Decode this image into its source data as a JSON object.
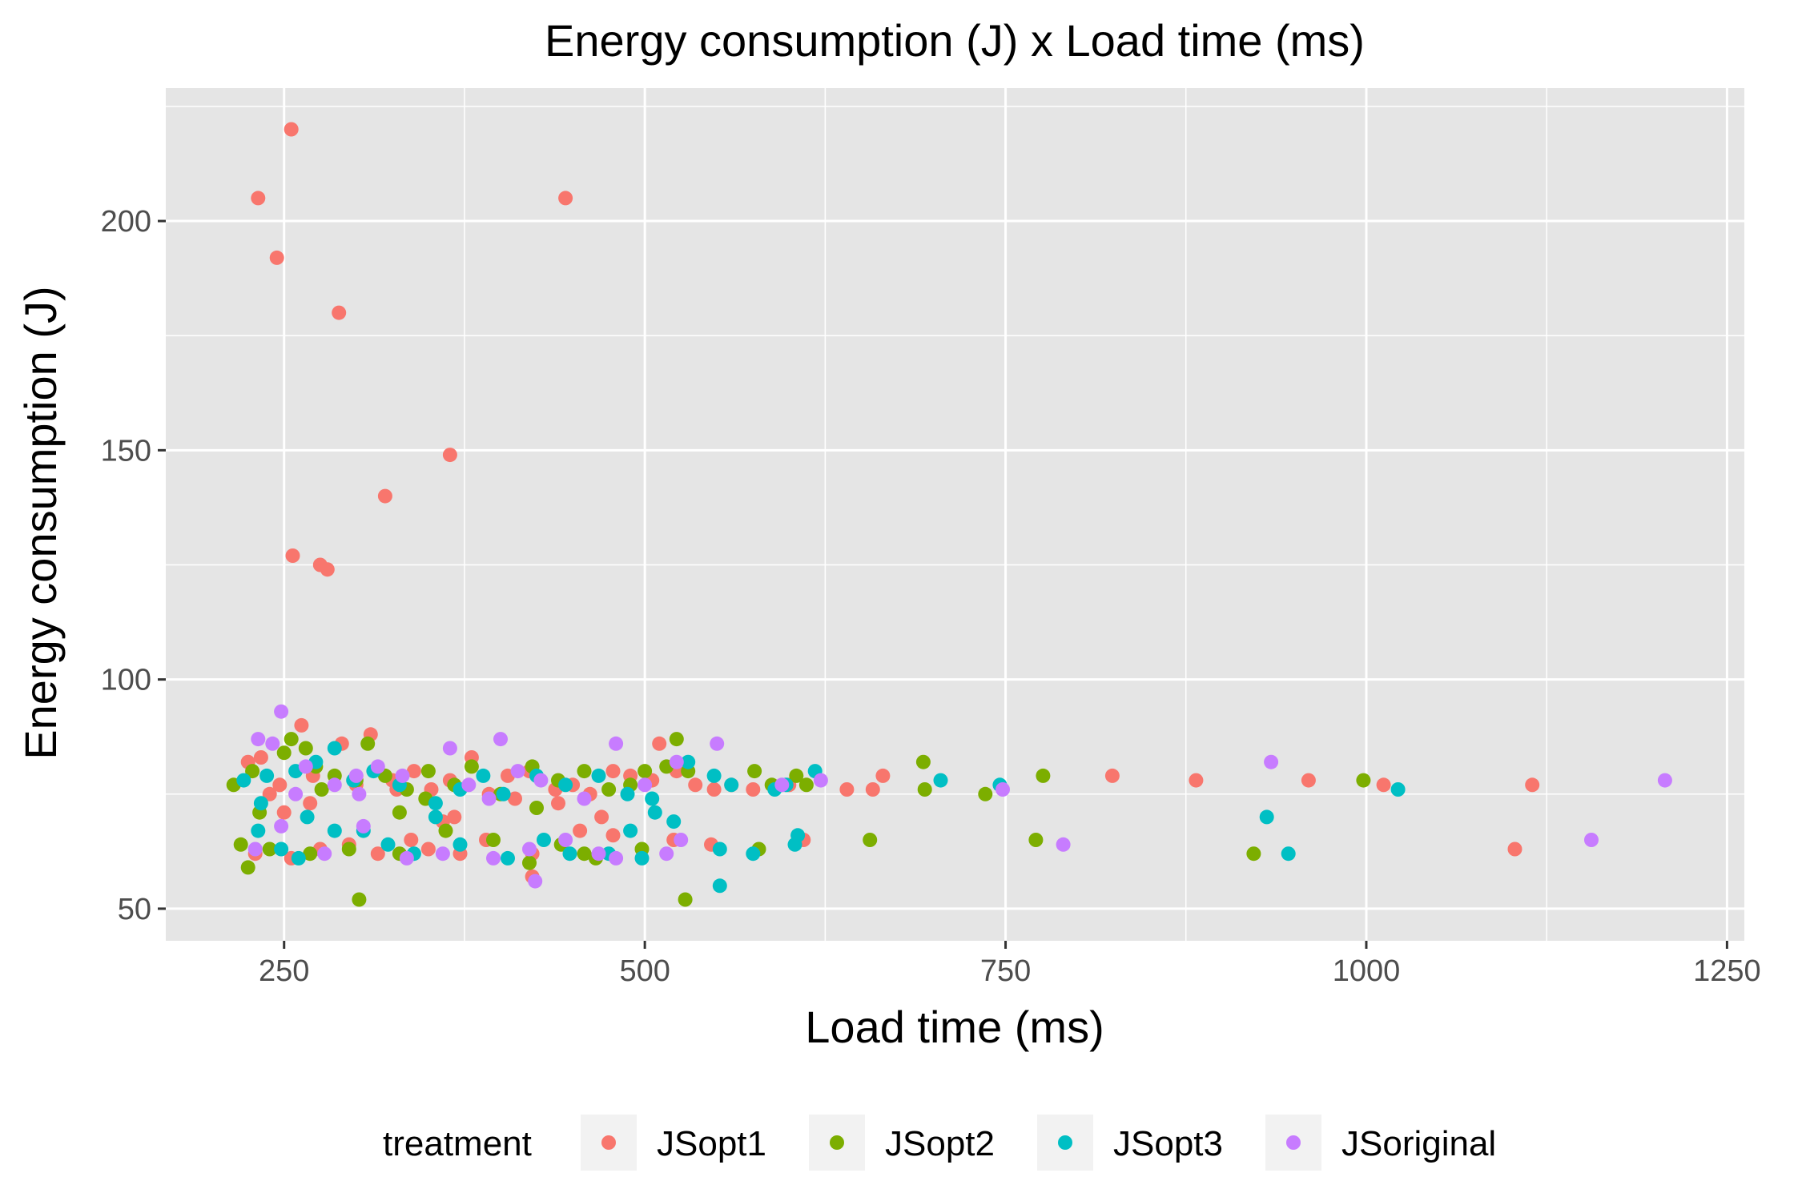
{
  "chart_data": {
    "type": "scatter",
    "title": "Energy consumption (J) x Load time (ms)",
    "xlabel": "Load time (ms)",
    "ylabel": "Energy consumption (J)",
    "xlim": [
      168,
      1262
    ],
    "ylim": [
      43,
      229
    ],
    "x_ticks": [
      250,
      500,
      750,
      1000,
      1250
    ],
    "x_tick_labels": [
      "250",
      "500",
      "750",
      "1000",
      "1250"
    ],
    "y_ticks": [
      50,
      100,
      150,
      200
    ],
    "y_tick_labels": [
      "50",
      "100",
      "150",
      "200"
    ],
    "grid": true,
    "panel_background": "#e5e5e5",
    "legend_position": "bottom",
    "legend_title": "treatment",
    "series": [
      {
        "name": "JSopt1",
        "color": "#f8766d",
        "points": [
          [
            255,
            220
          ],
          [
            232,
            205
          ],
          [
            445,
            205
          ],
          [
            245,
            192
          ],
          [
            288,
            180
          ],
          [
            365,
            149
          ],
          [
            320,
            140
          ],
          [
            256,
            127
          ],
          [
            275,
            125
          ],
          [
            280,
            124
          ],
          [
            225,
            82
          ],
          [
            234,
            83
          ],
          [
            247,
            77
          ],
          [
            262,
            90
          ],
          [
            270,
            79
          ],
          [
            290,
            86
          ],
          [
            310,
            88
          ],
          [
            325,
            78
          ],
          [
            340,
            80
          ],
          [
            352,
            76
          ],
          [
            365,
            78
          ],
          [
            380,
            83
          ],
          [
            392,
            75
          ],
          [
            405,
            79
          ],
          [
            420,
            80
          ],
          [
            438,
            76
          ],
          [
            450,
            77
          ],
          [
            462,
            75
          ],
          [
            478,
            80
          ],
          [
            490,
            79
          ],
          [
            505,
            78
          ],
          [
            510,
            86
          ],
          [
            522,
            80
          ],
          [
            535,
            77
          ],
          [
            548,
            76
          ],
          [
            560,
            77
          ],
          [
            575,
            76
          ],
          [
            600,
            77
          ],
          [
            640,
            76
          ],
          [
            658,
            76
          ],
          [
            665,
            79
          ],
          [
            824,
            79
          ],
          [
            882,
            78
          ],
          [
            960,
            78
          ],
          [
            1012,
            77
          ],
          [
            1115,
            77
          ],
          [
            1103,
            63
          ],
          [
            230,
            62
          ],
          [
            255,
            61
          ],
          [
            275,
            63
          ],
          [
            295,
            64
          ],
          [
            315,
            62
          ],
          [
            338,
            65
          ],
          [
            350,
            63
          ],
          [
            372,
            62
          ],
          [
            390,
            65
          ],
          [
            422,
            62
          ],
          [
            455,
            67
          ],
          [
            470,
            70
          ],
          [
            478,
            66
          ],
          [
            546,
            64
          ],
          [
            422,
            57
          ],
          [
            520,
            65
          ],
          [
            610,
            65
          ],
          [
            360,
            69
          ],
          [
            250,
            71
          ],
          [
            328,
            76
          ],
          [
            300,
            77
          ],
          [
            268,
            73
          ],
          [
            240,
            75
          ],
          [
            410,
            74
          ],
          [
            440,
            73
          ],
          [
            368,
            70
          ]
        ]
      },
      {
        "name": "JSopt2",
        "color": "#7cae00",
        "points": [
          [
            215,
            77
          ],
          [
            228,
            80
          ],
          [
            250,
            84
          ],
          [
            255,
            87
          ],
          [
            265,
            85
          ],
          [
            272,
            81
          ],
          [
            285,
            79
          ],
          [
            300,
            78
          ],
          [
            308,
            86
          ],
          [
            320,
            79
          ],
          [
            335,
            76
          ],
          [
            350,
            80
          ],
          [
            368,
            77
          ],
          [
            380,
            81
          ],
          [
            400,
            75
          ],
          [
            422,
            81
          ],
          [
            440,
            78
          ],
          [
            458,
            80
          ],
          [
            475,
            76
          ],
          [
            490,
            77
          ],
          [
            500,
            80
          ],
          [
            515,
            81
          ],
          [
            522,
            87
          ],
          [
            530,
            80
          ],
          [
            576,
            80
          ],
          [
            588,
            77
          ],
          [
            605,
            79
          ],
          [
            612,
            77
          ],
          [
            693,
            82
          ],
          [
            694,
            76
          ],
          [
            736,
            75
          ],
          [
            776,
            79
          ],
          [
            998,
            78
          ],
          [
            220,
            64
          ],
          [
            225,
            59
          ],
          [
            240,
            63
          ],
          [
            268,
            62
          ],
          [
            295,
            63
          ],
          [
            302,
            52
          ],
          [
            330,
            62
          ],
          [
            362,
            67
          ],
          [
            395,
            65
          ],
          [
            420,
            60
          ],
          [
            442,
            64
          ],
          [
            458,
            62
          ],
          [
            466,
            61
          ],
          [
            498,
            63
          ],
          [
            528,
            52
          ],
          [
            579,
            63
          ],
          [
            656,
            65
          ],
          [
            771,
            65
          ],
          [
            922,
            62
          ],
          [
            233,
            71
          ],
          [
            425,
            72
          ],
          [
            330,
            71
          ],
          [
            348,
            74
          ],
          [
            276,
            76
          ]
        ]
      },
      {
        "name": "JSopt3",
        "color": "#00bfc4",
        "points": [
          [
            222,
            78
          ],
          [
            238,
            79
          ],
          [
            258,
            80
          ],
          [
            272,
            82
          ],
          [
            285,
            85
          ],
          [
            298,
            78
          ],
          [
            312,
            80
          ],
          [
            330,
            77
          ],
          [
            355,
            73
          ],
          [
            372,
            76
          ],
          [
            388,
            79
          ],
          [
            402,
            75
          ],
          [
            425,
            79
          ],
          [
            445,
            77
          ],
          [
            468,
            79
          ],
          [
            488,
            75
          ],
          [
            505,
            74
          ],
          [
            530,
            82
          ],
          [
            548,
            79
          ],
          [
            560,
            77
          ],
          [
            590,
            76
          ],
          [
            598,
            77
          ],
          [
            618,
            80
          ],
          [
            705,
            78
          ],
          [
            746,
            77
          ],
          [
            1022,
            76
          ],
          [
            232,
            67
          ],
          [
            248,
            63
          ],
          [
            260,
            61
          ],
          [
            285,
            67
          ],
          [
            305,
            67
          ],
          [
            322,
            64
          ],
          [
            340,
            62
          ],
          [
            372,
            64
          ],
          [
            405,
            61
          ],
          [
            430,
            65
          ],
          [
            448,
            62
          ],
          [
            475,
            62
          ],
          [
            490,
            67
          ],
          [
            498,
            61
          ],
          [
            520,
            69
          ],
          [
            552,
            63
          ],
          [
            552,
            55
          ],
          [
            575,
            62
          ],
          [
            604,
            64
          ],
          [
            606,
            66
          ],
          [
            931,
            70
          ],
          [
            946,
            62
          ],
          [
            234,
            73
          ],
          [
            266,
            70
          ],
          [
            507,
            71
          ],
          [
            355,
            70
          ]
        ]
      },
      {
        "name": "JSoriginal",
        "color": "#c77cff",
        "points": [
          [
            248,
            93
          ],
          [
            232,
            87
          ],
          [
            242,
            86
          ],
          [
            265,
            81
          ],
          [
            285,
            77
          ],
          [
            302,
            75
          ],
          [
            315,
            81
          ],
          [
            332,
            79
          ],
          [
            365,
            85
          ],
          [
            378,
            77
          ],
          [
            400,
            87
          ],
          [
            412,
            80
          ],
          [
            428,
            78
          ],
          [
            458,
            74
          ],
          [
            480,
            86
          ],
          [
            500,
            77
          ],
          [
            522,
            82
          ],
          [
            550,
            86
          ],
          [
            595,
            77
          ],
          [
            622,
            78
          ],
          [
            748,
            76
          ],
          [
            934,
            82
          ],
          [
            1207,
            78
          ],
          [
            230,
            63
          ],
          [
            248,
            68
          ],
          [
            278,
            62
          ],
          [
            305,
            68
          ],
          [
            335,
            61
          ],
          [
            360,
            62
          ],
          [
            395,
            61
          ],
          [
            420,
            63
          ],
          [
            424,
            56
          ],
          [
            445,
            65
          ],
          [
            468,
            62
          ],
          [
            480,
            61
          ],
          [
            515,
            62
          ],
          [
            525,
            65
          ],
          [
            790,
            64
          ],
          [
            1156,
            65
          ],
          [
            258,
            75
          ],
          [
            392,
            74
          ],
          [
            300,
            79
          ]
        ]
      }
    ]
  }
}
